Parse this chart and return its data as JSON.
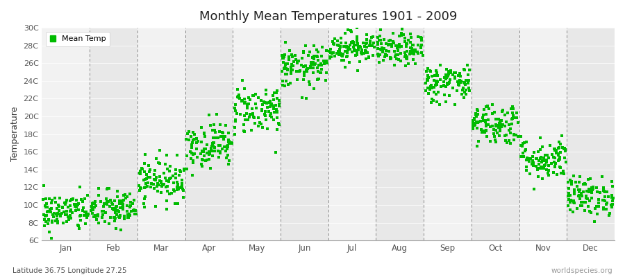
{
  "title": "Monthly Mean Temperatures 1901 - 2009",
  "ylabel": "Temperature",
  "subtitle": "Latitude 36.75 Longitude 27.25",
  "watermark": "worldspecies.org",
  "legend_label": "Mean Temp",
  "marker_color": "#00BB00",
  "marker": "s",
  "marker_size": 2.5,
  "bg_color_even": "#F2F2F2",
  "bg_color_odd": "#E8E8E8",
  "ylim": [
    6,
    30
  ],
  "yticks": [
    6,
    8,
    10,
    12,
    14,
    16,
    18,
    20,
    22,
    24,
    26,
    28,
    30
  ],
  "ytick_labels": [
    "6C",
    "8C",
    "10C",
    "12C",
    "14C",
    "16C",
    "18C",
    "20C",
    "22C",
    "24C",
    "26C",
    "28C",
    "30C"
  ],
  "months": [
    "Jan",
    "Feb",
    "Mar",
    "Apr",
    "May",
    "Jun",
    "Jul",
    "Aug",
    "Sep",
    "Oct",
    "Nov",
    "Dec"
  ],
  "num_years": 109,
  "month_means": [
    9.2,
    9.5,
    12.8,
    16.8,
    20.8,
    25.5,
    27.8,
    27.5,
    23.8,
    19.2,
    15.2,
    11.0
  ],
  "month_stds": [
    1.1,
    1.1,
    1.2,
    1.3,
    1.4,
    1.2,
    0.9,
    0.9,
    1.1,
    1.2,
    1.2,
    1.1
  ]
}
